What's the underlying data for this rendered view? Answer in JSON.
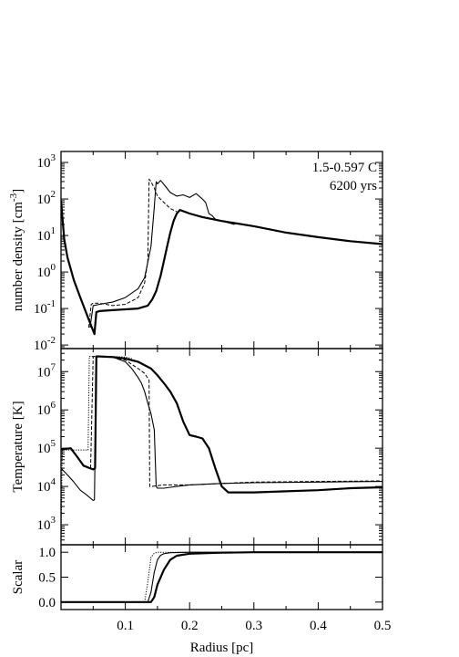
{
  "chart_data": [
    {
      "type": "line",
      "panel": "density",
      "ylabel": "number density [cm",
      "ylabel_sup": "-3",
      "ylabel_tail": "]",
      "yscale": "log",
      "ylim": [
        0.008,
        2000
      ],
      "xlim": [
        0.0,
        0.5
      ],
      "annotation_line1": "1.5-0.597 C",
      "annotation_line2": "6200 yrs",
      "yticks": [
        {
          "value": 0.01,
          "base": "10",
          "exp": "-2"
        },
        {
          "value": 0.1,
          "base": "10",
          "exp": "-1"
        },
        {
          "value": 1,
          "base": "10",
          "exp": "0"
        },
        {
          "value": 10,
          "base": "10",
          "exp": "1"
        },
        {
          "value": 100,
          "base": "10",
          "exp": "2"
        },
        {
          "value": 1000,
          "base": "10",
          "exp": "3"
        }
      ],
      "series": [
        {
          "style": "thick",
          "x": [
            0.0,
            0.005,
            0.01,
            0.02,
            0.03,
            0.04,
            0.048,
            0.052,
            0.055,
            0.06,
            0.08,
            0.1,
            0.12,
            0.135,
            0.142,
            0.148,
            0.155,
            0.16,
            0.165,
            0.17,
            0.175,
            0.18,
            0.185,
            0.2,
            0.22,
            0.25,
            0.3,
            0.35,
            0.4,
            0.45,
            0.5
          ],
          "y": [
            90,
            8,
            2.5,
            0.6,
            0.2,
            0.07,
            0.03,
            0.02,
            0.08,
            0.085,
            0.09,
            0.095,
            0.1,
            0.12,
            0.18,
            0.3,
            0.8,
            2,
            5,
            12,
            25,
            40,
            50,
            40,
            32,
            25,
            18,
            12,
            9,
            7,
            5.8
          ]
        },
        {
          "style": "thin",
          "x": [
            0.045,
            0.05,
            0.06,
            0.08,
            0.1,
            0.12,
            0.13,
            0.14,
            0.145,
            0.148,
            0.15,
            0.155,
            0.16,
            0.17,
            0.18,
            0.19,
            0.2,
            0.21,
            0.22,
            0.225,
            0.23,
            0.235,
            0.24,
            0.25,
            0.27
          ],
          "y": [
            0.03,
            0.12,
            0.13,
            0.15,
            0.2,
            0.35,
            0.7,
            5,
            60,
            300,
            260,
            320,
            250,
            150,
            120,
            130,
            110,
            140,
            100,
            80,
            40,
            35,
            28,
            25,
            20
          ]
        },
        {
          "style": "dash",
          "x": [
            0.043,
            0.047,
            0.05,
            0.06,
            0.08,
            0.1,
            0.12,
            0.13,
            0.135,
            0.137,
            0.14,
            0.145,
            0.15,
            0.16,
            0.17,
            0.18
          ],
          "y": [
            0.03,
            0.13,
            0.14,
            0.14,
            0.12,
            0.13,
            0.2,
            0.5,
            2,
            350,
            300,
            200,
            120,
            80,
            55,
            45
          ]
        }
      ]
    },
    {
      "type": "line",
      "panel": "temperature",
      "ylabel": "Temperature [K]",
      "yscale": "log",
      "ylim": [
        300,
        40000000
      ],
      "xlim": [
        0.0,
        0.5
      ],
      "yticks": [
        {
          "value": 1000,
          "base": "10",
          "exp": "3"
        },
        {
          "value": 10000,
          "base": "10",
          "exp": "4"
        },
        {
          "value": 100000,
          "base": "10",
          "exp": "5"
        },
        {
          "value": 1000000,
          "base": "10",
          "exp": "6"
        },
        {
          "value": 10000000,
          "base": "10",
          "exp": "7"
        }
      ],
      "series": [
        {
          "style": "thick",
          "x": [
            0.0,
            0.005,
            0.015,
            0.025,
            0.035,
            0.045,
            0.05,
            0.053,
            0.055,
            0.06,
            0.08,
            0.1,
            0.12,
            0.14,
            0.15,
            0.16,
            0.17,
            0.18,
            0.19,
            0.2,
            0.21,
            0.22,
            0.23,
            0.24,
            0.25,
            0.26,
            0.3,
            0.35,
            0.4,
            0.45,
            0.5
          ],
          "y": [
            95000,
            95000,
            100000,
            60000,
            35000,
            30000,
            28000,
            30000,
            25000000,
            25000000,
            24000000,
            22000000,
            18000000,
            12000000,
            8000000,
            5000000,
            3000000,
            1500000,
            500000,
            220000,
            200000,
            180000,
            100000,
            30000,
            10000,
            7000,
            7000,
            7500,
            8000,
            9000,
            9500
          ]
        },
        {
          "style": "thin",
          "x": [
            0.0,
            0.01,
            0.02,
            0.03,
            0.04,
            0.05,
            0.052,
            0.055,
            0.06,
            0.08,
            0.1,
            0.11,
            0.12,
            0.125,
            0.13,
            0.135,
            0.14,
            0.145,
            0.148,
            0.15,
            0.16,
            0.17,
            0.18,
            0.2,
            0.25,
            0.3,
            0.4,
            0.5
          ],
          "y": [
            30000,
            20000,
            13000,
            8000,
            6000,
            4300,
            4500,
            25000000,
            25000000,
            24000000,
            18000000,
            12000000,
            7000000,
            5000000,
            3000000,
            1500000,
            800000,
            300000,
            10000,
            9000,
            9000,
            9500,
            10000,
            11000,
            12000,
            12500,
            13000,
            13500
          ]
        },
        {
          "style": "dash",
          "x": [
            0.046,
            0.05,
            0.06,
            0.08,
            0.1,
            0.12,
            0.13,
            0.137,
            0.138,
            0.14,
            0.16,
            0.2,
            0.25,
            0.3,
            0.4,
            0.5
          ],
          "y": [
            30000,
            25000000,
            25000000,
            24000000,
            20000000,
            12000000,
            9000000,
            6000000,
            10000,
            10000,
            11000,
            11000,
            12000,
            13000,
            13500,
            14000
          ]
        },
        {
          "style": "dot",
          "x": [
            0.0,
            0.002,
            0.042,
            0.044,
            0.05,
            0.08,
            0.1,
            0.11
          ],
          "y": [
            400,
            90000,
            90000,
            25000000,
            25000000,
            25000000,
            24000000,
            22000000
          ]
        }
      ]
    },
    {
      "type": "line",
      "panel": "scalar",
      "ylabel": "Scalar",
      "xlabel": "Radius [pc]",
      "ylim": [
        -0.15,
        1.15
      ],
      "xlim": [
        0.0,
        0.5
      ],
      "yticks": [
        {
          "value": 0.0,
          "label": "0.0"
        },
        {
          "value": 0.5,
          "label": "0.5"
        },
        {
          "value": 1.0,
          "label": "1.0"
        }
      ],
      "xticks": [
        {
          "value": 0.1,
          "label": "0.1"
        },
        {
          "value": 0.2,
          "label": "0.2"
        },
        {
          "value": 0.3,
          "label": "0.3"
        },
        {
          "value": 0.4,
          "label": "0.4"
        },
        {
          "value": 0.5,
          "label": "0.5"
        }
      ],
      "series": [
        {
          "style": "thick",
          "x": [
            0.0,
            0.14,
            0.145,
            0.15,
            0.16,
            0.17,
            0.18,
            0.2,
            0.25,
            0.3,
            0.5
          ],
          "y": [
            0.0,
            0.0,
            0.1,
            0.35,
            0.65,
            0.85,
            0.93,
            0.97,
            0.99,
            1.0,
            1.0
          ]
        },
        {
          "style": "thin",
          "x": [
            0.0,
            0.135,
            0.14,
            0.145,
            0.15,
            0.155,
            0.16,
            0.17,
            0.2,
            0.5
          ],
          "y": [
            0.0,
            0.0,
            0.2,
            0.6,
            0.85,
            0.94,
            0.97,
            0.99,
            1.0,
            1.0
          ]
        },
        {
          "style": "dot",
          "x": [
            0.0,
            0.13,
            0.135,
            0.14,
            0.145,
            0.15,
            0.5
          ],
          "y": [
            0.0,
            0.0,
            0.4,
            0.9,
            0.98,
            1.0,
            1.0
          ]
        }
      ]
    }
  ]
}
